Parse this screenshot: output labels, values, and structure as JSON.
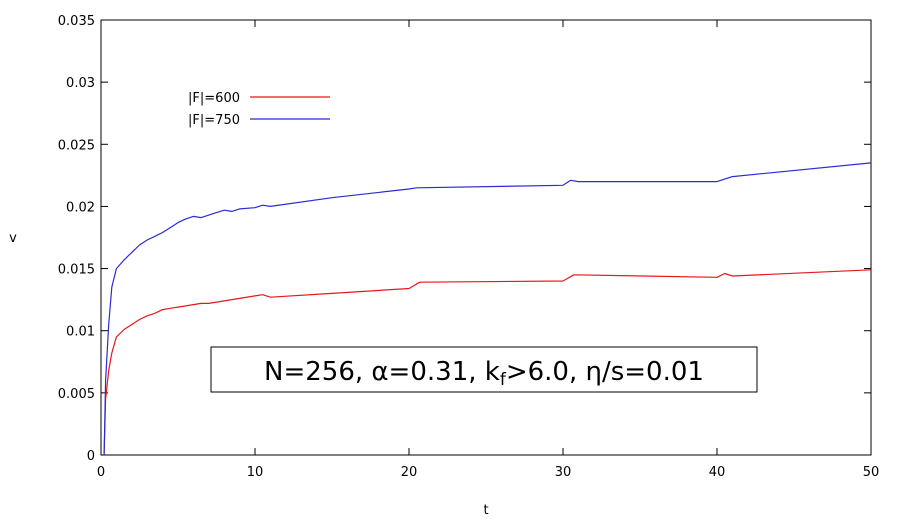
{
  "chart_data": {
    "type": "line",
    "title": "",
    "xlabel": "t",
    "ylabel": "v",
    "xlim": [
      0,
      50
    ],
    "ylim": [
      0,
      0.035
    ],
    "x_ticks": [
      "0",
      "10",
      "20",
      "30",
      "40",
      "50"
    ],
    "y_ticks": [
      "0",
      "0.005",
      "0.01",
      "0.015",
      "0.02",
      "0.025",
      "0.03",
      "0.035"
    ],
    "grid": false,
    "legend_position": "top-left",
    "annotation": {
      "prefix": "N=256, α=0.31, k",
      "subscript": "f",
      "suffix": ">6.0, η/s=0.01"
    },
    "series": [
      {
        "name": "|F|=600",
        "color": "#e8171b",
        "points": [
          [
            0.2,
            0
          ],
          [
            0.3,
            0.0045
          ],
          [
            0.5,
            0.0068
          ],
          [
            0.7,
            0.0082
          ],
          [
            1,
            0.0095
          ],
          [
            1.5,
            0.0101
          ],
          [
            2,
            0.0105
          ],
          [
            2.5,
            0.0109
          ],
          [
            3,
            0.0112
          ],
          [
            3.5,
            0.0114
          ],
          [
            4,
            0.0117
          ],
          [
            4.5,
            0.0118
          ],
          [
            5,
            0.0119
          ],
          [
            5.5,
            0.012
          ],
          [
            6,
            0.0121
          ],
          [
            6.5,
            0.0122
          ],
          [
            7,
            0.0122
          ],
          [
            7.5,
            0.0123
          ],
          [
            8,
            0.0124
          ],
          [
            9,
            0.0126
          ],
          [
            10,
            0.0128
          ],
          [
            10.5,
            0.0129
          ],
          [
            11,
            0.0127
          ],
          [
            15,
            0.013
          ],
          [
            20,
            0.0134
          ],
          [
            20.7,
            0.0139
          ],
          [
            30,
            0.014
          ],
          [
            30.7,
            0.0145
          ],
          [
            40,
            0.0143
          ],
          [
            40.5,
            0.0146
          ],
          [
            41,
            0.0144
          ],
          [
            50,
            0.0149
          ]
        ]
      },
      {
        "name": "|F|=750",
        "color": "#2b2bd6",
        "points": [
          [
            0.2,
            0
          ],
          [
            0.3,
            0.006
          ],
          [
            0.5,
            0.0105
          ],
          [
            0.7,
            0.0135
          ],
          [
            1,
            0.015
          ],
          [
            1.5,
            0.0157
          ],
          [
            2,
            0.0163
          ],
          [
            2.5,
            0.0169
          ],
          [
            3,
            0.0173
          ],
          [
            3.5,
            0.0176
          ],
          [
            4,
            0.0179
          ],
          [
            4.5,
            0.0183
          ],
          [
            5,
            0.0187
          ],
          [
            5.5,
            0.019
          ],
          [
            6,
            0.0192
          ],
          [
            6.5,
            0.0191
          ],
          [
            7,
            0.0193
          ],
          [
            7.5,
            0.0195
          ],
          [
            8,
            0.0197
          ],
          [
            8.5,
            0.0196
          ],
          [
            9,
            0.0198
          ],
          [
            10,
            0.0199
          ],
          [
            10.5,
            0.0201
          ],
          [
            11,
            0.02
          ],
          [
            15,
            0.0207
          ],
          [
            20,
            0.0214
          ],
          [
            20.5,
            0.0215
          ],
          [
            30,
            0.0217
          ],
          [
            30.5,
            0.0221
          ],
          [
            31,
            0.022
          ],
          [
            40,
            0.022
          ],
          [
            40.5,
            0.0222
          ],
          [
            41,
            0.0224
          ],
          [
            50,
            0.0235
          ]
        ]
      }
    ]
  }
}
